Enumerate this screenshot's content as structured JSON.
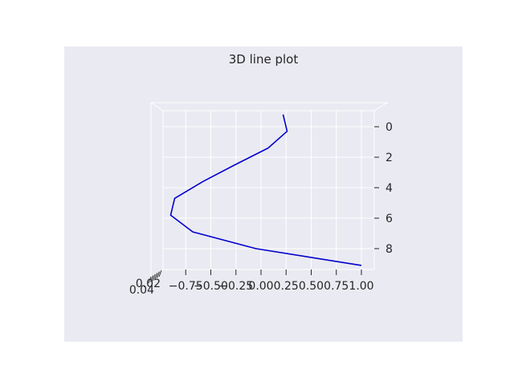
{
  "chart_data": {
    "type": "line",
    "title": "3D line plot",
    "view": "3d",
    "x_ticks": [
      "−0.75",
      "−0.50",
      "−0.25",
      "0.00",
      "0.25",
      "0.50",
      "0.75",
      "1.00"
    ],
    "x_tick_values": [
      -0.75,
      -0.5,
      -0.25,
      0.0,
      0.25,
      0.5,
      0.75,
      1.0
    ],
    "y_ticks": [
      "0",
      "2",
      "4",
      "6",
      "8"
    ],
    "y_tick_values": [
      0,
      2,
      4,
      6,
      8
    ],
    "z_ticks_visible": [
      "0.02",
      "0.04"
    ],
    "xlim": [
      -0.9,
      1.1
    ],
    "ylim": [
      -0.5,
      9.5
    ],
    "series": [
      {
        "color": "#0000cd",
        "x": [
          0.22,
          0.26,
          0.07,
          -0.26,
          -0.58,
          -0.86,
          -0.9,
          -0.68,
          -0.05,
          1.0
        ],
        "y": [
          -0.8,
          0.3,
          1.4,
          2.5,
          3.6,
          4.7,
          5.8,
          6.9,
          8.0,
          9.1
        ]
      }
    ],
    "grid": true
  },
  "colors": {
    "axes_bg": "#eaeaf2",
    "grid": "#ffffff",
    "text": "#262626",
    "line": "#0000cd"
  }
}
